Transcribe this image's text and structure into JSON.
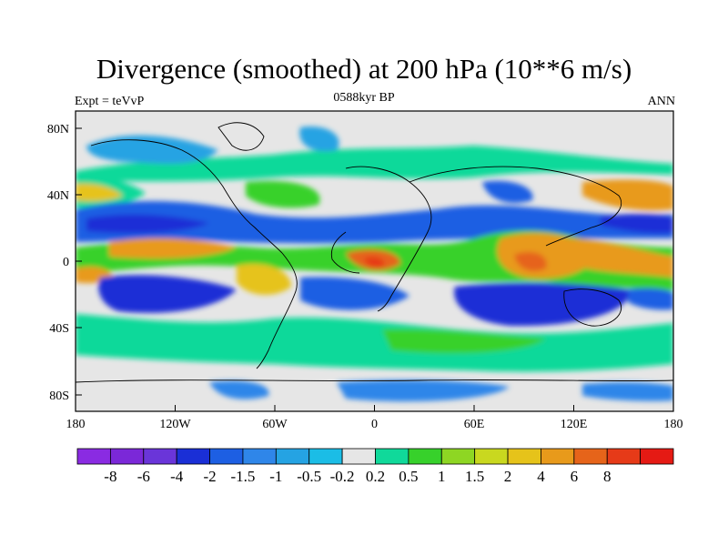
{
  "title": "Divergence (smoothed) at 200 hPa (10**6 m/s)",
  "left_label": "Expt = teVvP",
  "center_label": "0588kyr BP",
  "right_label": "ANN",
  "lat_ticks": [
    "80N",
    "40N",
    "0",
    "40S",
    "80S"
  ],
  "lon_ticks": [
    "180",
    "120W",
    "60W",
    "0",
    "60E",
    "120E",
    "180"
  ],
  "colorbar": {
    "colors": [
      "#8a2be2",
      "#7b28d8",
      "#6a35d9",
      "#1a2fd6",
      "#1d5fe3",
      "#2f86e9",
      "#25a3e3",
      "#1bbde6",
      "#e6e6e6",
      "#10d99a",
      "#37d12b",
      "#8ed623",
      "#c9d81f",
      "#e6c31a",
      "#e89a1b",
      "#e6641a",
      "#e63a18",
      "#e51a14"
    ],
    "labels": [
      "-8",
      "-6",
      "-4",
      "-2",
      "-1.5",
      "-1",
      "-0.5",
      "-0.2",
      "0.2",
      "0.5",
      "1",
      "1.5",
      "2",
      "4",
      "6",
      "8"
    ]
  }
}
